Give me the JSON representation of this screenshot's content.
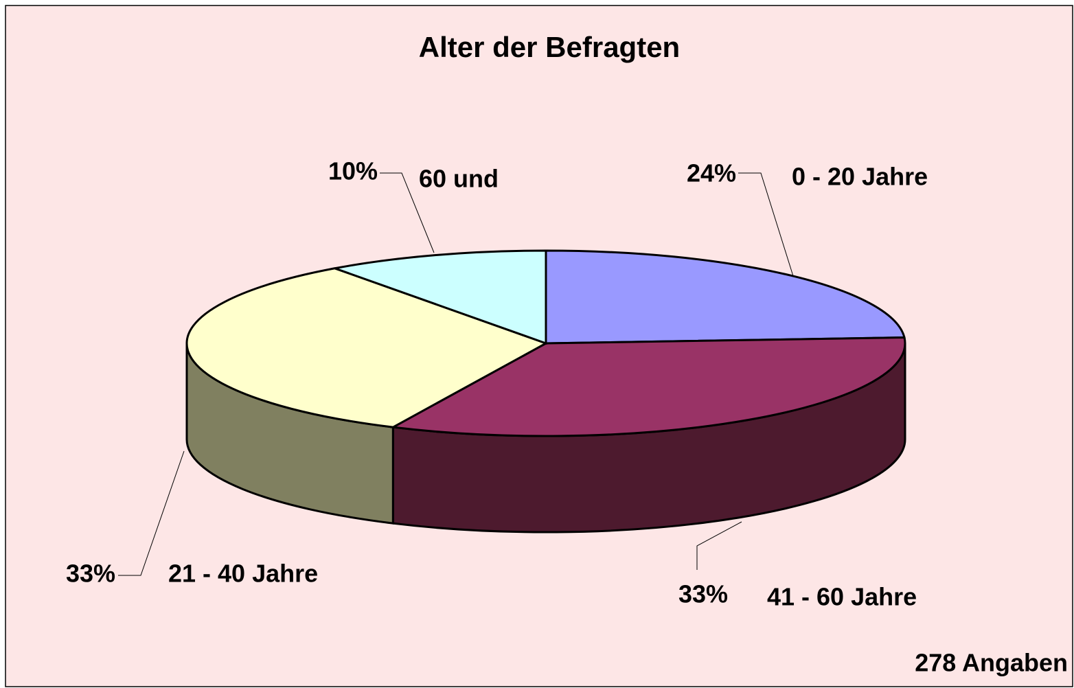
{
  "chart_data": {
    "type": "pie3d",
    "title": "Alter der Befragten",
    "categories": [
      "0 - 20 Jahre",
      "41 - 60 Jahre",
      "21 - 40 Jahre",
      "60 und"
    ],
    "values": [
      24,
      33,
      33,
      10
    ],
    "value_labels": [
      "24%",
      "33%",
      "33%",
      "10%"
    ],
    "colors": [
      "#9999ff",
      "#993366",
      "#ffffcc",
      "#ccffff"
    ],
    "side_colors": [
      "#5c5c99",
      "#4d1a2e",
      "#808060",
      "#7a9999"
    ],
    "footnote": "278 Angaben"
  }
}
